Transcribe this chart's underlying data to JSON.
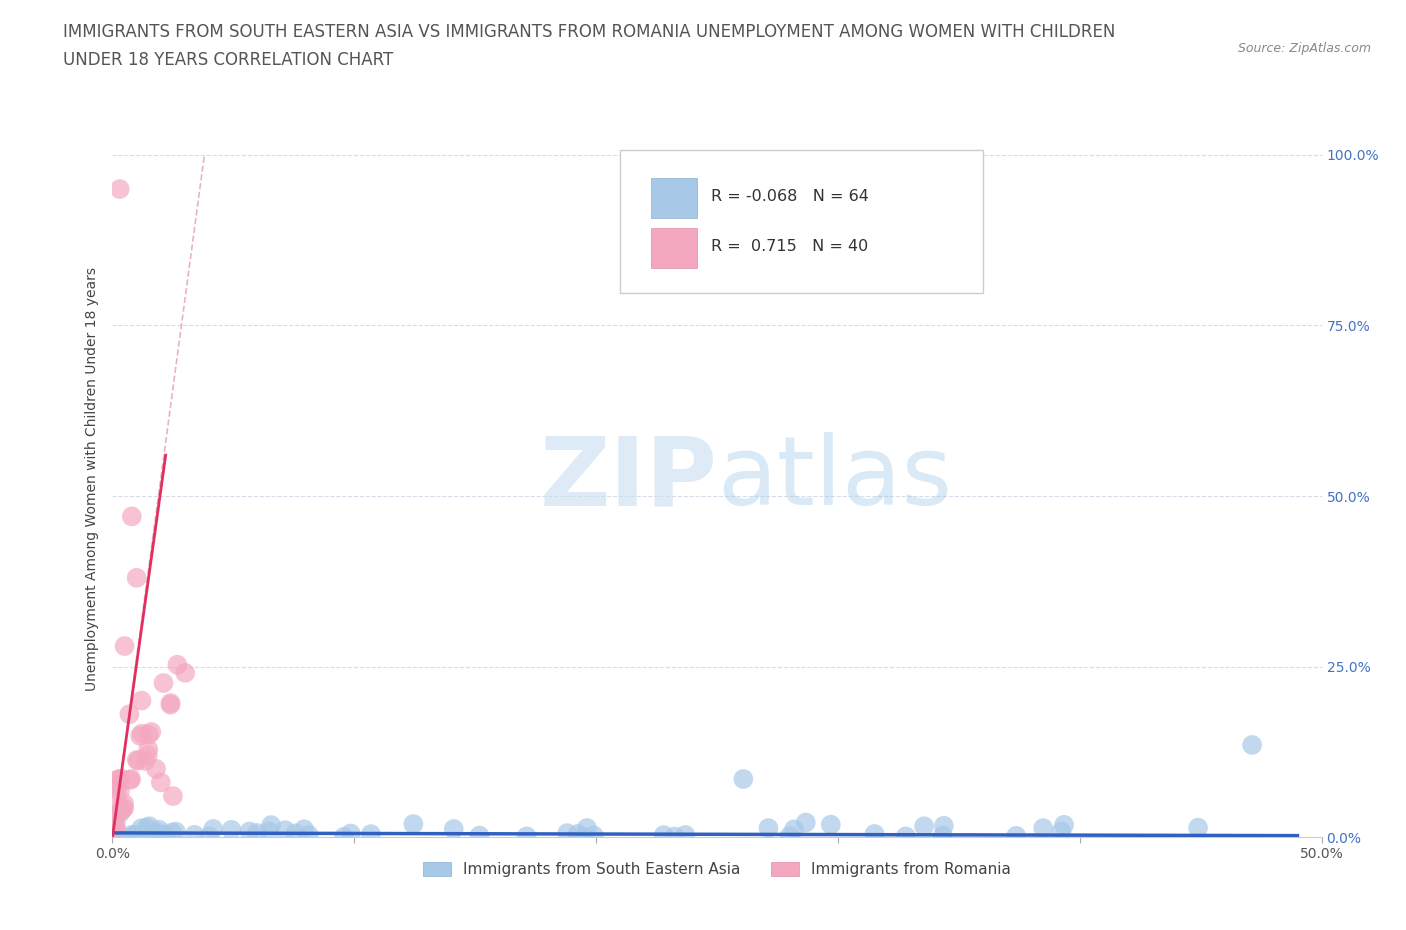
{
  "title_line1": "IMMIGRANTS FROM SOUTH EASTERN ASIA VS IMMIGRANTS FROM ROMANIA UNEMPLOYMENT AMONG WOMEN WITH CHILDREN",
  "title_line2": "UNDER 18 YEARS CORRELATION CHART",
  "source": "Source: ZipAtlas.com",
  "ylabel": "Unemployment Among Women with Children Under 18 years",
  "xlim": [
    0.0,
    0.5
  ],
  "ylim": [
    0.0,
    1.05
  ],
  "xtick_values": [
    0.0,
    0.1,
    0.2,
    0.3,
    0.4,
    0.5
  ],
  "xtick_labels_ends": [
    "0.0%",
    "50.0%"
  ],
  "ytick_values": [
    0.0,
    0.25,
    0.5,
    0.75,
    1.0
  ],
  "ytick_labels": [
    "0.0%",
    "25.0%",
    "50.0%",
    "75.0%",
    "100.0%"
  ],
  "color_blue": "#a8c8e8",
  "color_pink": "#f4a8c0",
  "line_blue": "#3060c0",
  "line_pink": "#e03060",
  "line_dash": "#e8a0b0",
  "watermark_zip": "ZIP",
  "watermark_atlas": "atlas",
  "legend_r_blue": "-0.068",
  "legend_n_blue": "64",
  "legend_r_pink": "0.715",
  "legend_n_pink": "40",
  "title_fontsize": 12,
  "axis_label_fontsize": 10,
  "tick_fontsize": 10,
  "legend_fontsize": 12,
  "right_tick_color": "#4472c4",
  "grid_color": "#d8dce8",
  "bottom_legend_label_blue": "Immigrants from South Eastern Asia",
  "bottom_legend_label_pink": "Immigrants from Romania"
}
